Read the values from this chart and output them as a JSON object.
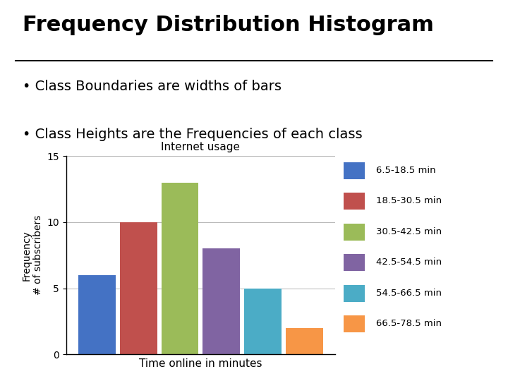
{
  "main_title": "Frequency Distribution Histogram",
  "bullet1": "Class Boundaries are widths of bars",
  "bullet2": "Class Heights are the Frequencies of each class",
  "chart_title": "Internet usage",
  "xlabel": "Time online in minutes",
  "ylabel": "Frequency\n# of subscribers",
  "categories": [
    "6.5-18.5",
    "18.5-30.5",
    "30.5-42.5",
    "42.5-54.5",
    "54.5-66.5",
    "66.5-78.5"
  ],
  "values": [
    6,
    10,
    13,
    8,
    5,
    2
  ],
  "bar_colors": [
    "#4472C4",
    "#C0504D",
    "#9BBB59",
    "#8064A2",
    "#4BACC6",
    "#F79646"
  ],
  "legend_labels": [
    "6.5-18.5 min",
    "18.5-30.5 min",
    "30.5-42.5 min",
    "42.5-54.5 min",
    "54.5-66.5 min",
    "66.5-78.5 min"
  ],
  "ylim": [
    0,
    15
  ],
  "yticks": [
    0,
    5,
    10,
    15
  ],
  "background_color": "#FFFFFF"
}
